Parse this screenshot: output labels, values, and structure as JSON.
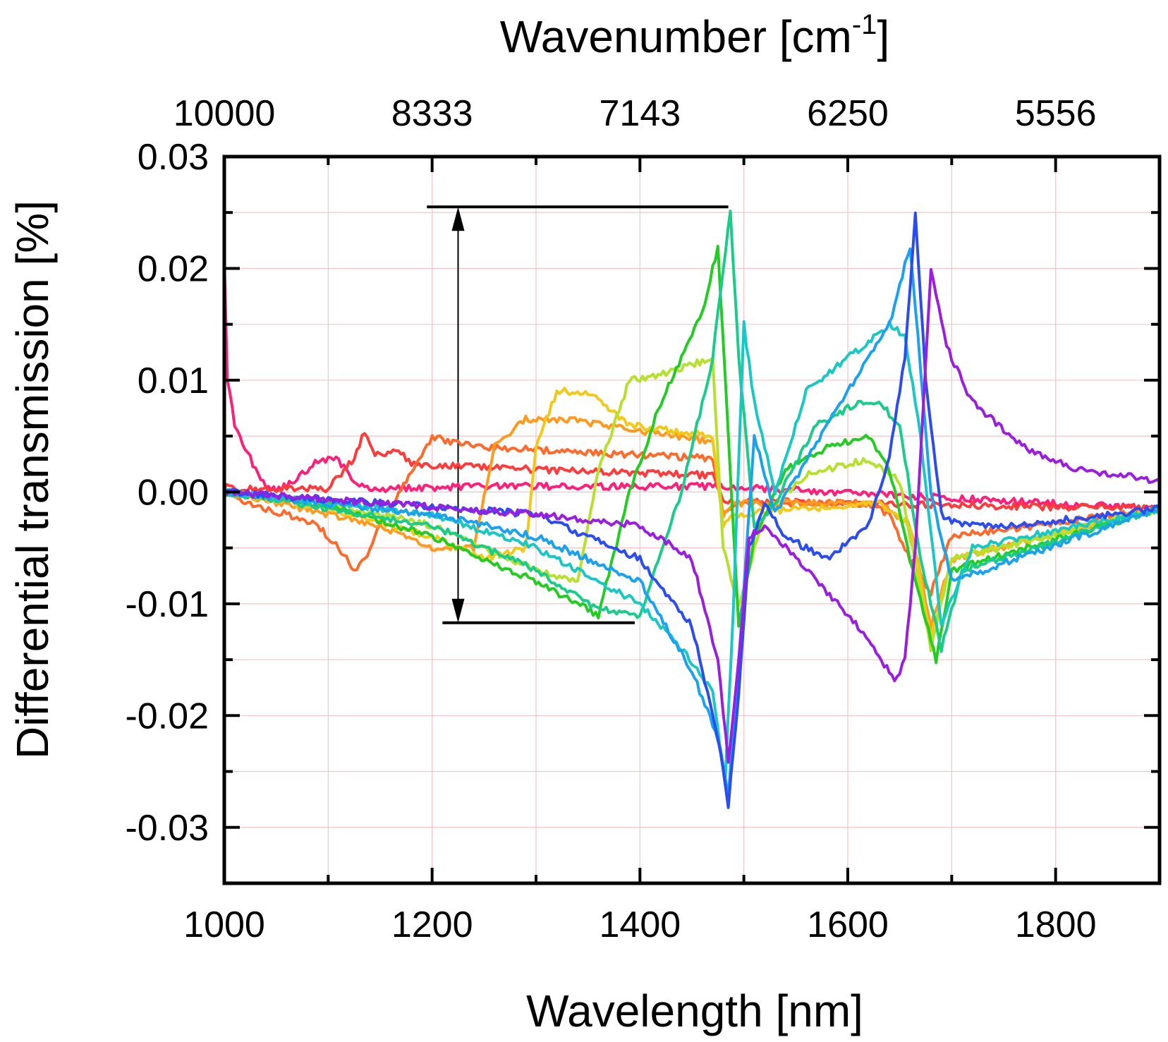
{
  "chart_data": {
    "type": "line",
    "title": "",
    "xlabel": "Wavelength [nm]",
    "x2label_base": "Wavenumber [cm",
    "x2label_sup": "-1",
    "x2label_end": "]",
    "ylabel": "Differential transmission [%]",
    "xlim": [
      1000,
      1900
    ],
    "ylim": [
      -0.035,
      0.03
    ],
    "x_ticks": [
      1000,
      1200,
      1400,
      1600,
      1800
    ],
    "x_tick_labels": [
      "1000",
      "1200",
      "1400",
      "1600",
      "1800"
    ],
    "x2_ticks": [
      1000,
      1200,
      1400,
      1600,
      1800
    ],
    "x2_tick_labels": [
      "10000",
      "8333",
      "7143",
      "6250",
      "5556"
    ],
    "y_ticks": [
      0.03,
      0.02,
      0.01,
      0.0,
      -0.01,
      -0.02,
      -0.03
    ],
    "y_tick_labels": [
      "0.03",
      "0.02",
      "0.01",
      "0.00",
      "-0.01",
      "-0.02",
      "-0.03"
    ],
    "grid": true,
    "colors": {
      "axis": "#000000",
      "grid": "#f4c4c4",
      "annotation": "#000000"
    },
    "annotation": {
      "top_line": {
        "x": [
          1195,
          1485
        ],
        "y": 0.0255
      },
      "bottom_line": {
        "x": [
          1210,
          1395
        ],
        "y": -0.0117
      },
      "arrow": {
        "x": 1225,
        "y": [
          0.0255,
          -0.0117
        ]
      }
    },
    "series": [
      {
        "name": "s1",
        "color": "#ff1f7a",
        "x": [
          1000,
          1003,
          1010,
          1020,
          1030,
          1040,
          1050,
          1060,
          1080,
          1090,
          1100,
          1110,
          1130,
          1150,
          1250,
          1480,
          1900
        ],
        "y": [
          0.021,
          0.01,
          0.006,
          0.004,
          0.002,
          0.0005,
          0.0003,
          0.0005,
          0.002,
          0.0028,
          0.003,
          0.0028,
          0.0005,
          0.0003,
          0.0005,
          0.0005,
          -0.0015
        ]
      },
      {
        "name": "s2",
        "color": "#ff3a3a",
        "x": [
          1000,
          1010,
          1100,
          1125,
          1135,
          1145,
          1170,
          1180,
          1300,
          1470,
          1480,
          1900
        ],
        "y": [
          0.0005,
          0.0003,
          0.0003,
          0.003,
          0.0055,
          0.0035,
          0.0035,
          0.0025,
          0.002,
          0.0015,
          -0.0008,
          -0.0015
        ]
      },
      {
        "name": "s3",
        "color": "#ff6a2a",
        "x": [
          1000,
          1020,
          1060,
          1090,
          1110,
          1125,
          1135,
          1150,
          1200,
          1215,
          1250,
          1470,
          1480,
          1490,
          1620,
          1640,
          1660,
          1680,
          1700,
          1900
        ],
        "y": [
          0.0,
          -0.001,
          -0.002,
          -0.003,
          -0.005,
          -0.007,
          -0.006,
          -0.003,
          0.005,
          0.0045,
          0.004,
          0.003,
          -0.002,
          -0.001,
          -0.001,
          -0.002,
          -0.006,
          -0.009,
          -0.004,
          -0.0015
        ]
      },
      {
        "name": "s4",
        "color": "#ff9a1f",
        "x": [
          1000,
          1050,
          1100,
          1150,
          1200,
          1240,
          1260,
          1290,
          1330,
          1470,
          1480,
          1490,
          1630,
          1660,
          1680,
          1700,
          1900
        ],
        "y": [
          0.0,
          -0.001,
          -0.002,
          -0.003,
          -0.005,
          -0.005,
          0.004,
          0.0065,
          0.0065,
          0.0045,
          -0.002,
          -0.001,
          -0.001,
          -0.003,
          -0.012,
          -0.006,
          -0.0015
        ]
      },
      {
        "name": "s5",
        "color": "#f2c81a",
        "x": [
          1000,
          1100,
          1200,
          1250,
          1290,
          1300,
          1320,
          1350,
          1390,
          1470,
          1480,
          1490,
          1630,
          1660,
          1680,
          1700,
          1900
        ],
        "y": [
          0.0,
          -0.0015,
          -0.004,
          -0.006,
          -0.005,
          0.004,
          0.009,
          0.009,
          0.006,
          0.005,
          -0.003,
          -0.002,
          -0.001,
          -0.003,
          -0.013,
          -0.006,
          -0.0015
        ]
      },
      {
        "name": "s6",
        "color": "#b6e02e",
        "x": [
          1000,
          1100,
          1200,
          1300,
          1340,
          1360,
          1390,
          1420,
          1470,
          1480,
          1495,
          1520,
          1560,
          1620,
          1650,
          1680,
          1700,
          1900
        ],
        "y": [
          0.0,
          -0.001,
          -0.003,
          -0.007,
          -0.008,
          0.002,
          0.01,
          0.0105,
          0.012,
          -0.005,
          -0.01,
          -0.002,
          0.0015,
          0.003,
          0.001,
          -0.014,
          -0.006,
          -0.0015
        ]
      },
      {
        "name": "s7",
        "color": "#22cc22",
        "x": [
          1000,
          1100,
          1200,
          1300,
          1360,
          1390,
          1420,
          1460,
          1475,
          1485,
          1495,
          1510,
          1540,
          1580,
          1620,
          1640,
          1660,
          1685,
          1700,
          1900
        ],
        "y": [
          0.0,
          -0.0012,
          -0.004,
          -0.008,
          -0.011,
          0.0,
          0.008,
          0.016,
          0.022,
          0.005,
          -0.012,
          -0.004,
          0.002,
          0.004,
          0.005,
          0.002,
          -0.006,
          -0.015,
          -0.007,
          -0.0015
        ]
      },
      {
        "name": "s8",
        "color": "#1acc8a",
        "x": [
          1000,
          1200,
          1300,
          1360,
          1400,
          1440,
          1470,
          1480,
          1487,
          1495,
          1510,
          1530,
          1570,
          1610,
          1630,
          1650,
          1670,
          1690,
          1710,
          1900
        ],
        "y": [
          0.0,
          -0.003,
          -0.007,
          -0.0105,
          -0.011,
          0.0,
          0.012,
          0.02,
          0.025,
          0.012,
          -0.003,
          -0.001,
          0.006,
          0.008,
          0.008,
          0.006,
          -0.006,
          -0.014,
          -0.007,
          -0.0015
        ]
      },
      {
        "name": "s9",
        "color": "#19c8c4",
        "x": [
          1000,
          1200,
          1300,
          1400,
          1440,
          1470,
          1482,
          1490,
          1500,
          1510,
          1530,
          1560,
          1600,
          1640,
          1655,
          1670,
          1690,
          1720,
          1900
        ],
        "y": [
          0.0,
          -0.002,
          -0.005,
          -0.01,
          -0.014,
          -0.018,
          -0.026,
          -0.01,
          0.015,
          0.008,
          0.0,
          0.009,
          0.012,
          0.015,
          0.014,
          0.005,
          -0.012,
          -0.005,
          -0.0015
        ]
      },
      {
        "name": "s10",
        "color": "#1aa2f0",
        "x": [
          1000,
          1200,
          1300,
          1400,
          1450,
          1475,
          1485,
          1495,
          1510,
          1530,
          1580,
          1620,
          1640,
          1660,
          1680,
          1700,
          1900
        ],
        "y": [
          0.0,
          -0.002,
          -0.004,
          -0.008,
          -0.016,
          -0.022,
          -0.027,
          -0.015,
          0.005,
          -0.002,
          0.006,
          0.012,
          0.015,
          0.022,
          0.0,
          -0.008,
          -0.0015
        ]
      },
      {
        "name": "s11",
        "color": "#2a4cf0",
        "x": [
          1000,
          1300,
          1400,
          1450,
          1475,
          1485,
          1495,
          1505,
          1520,
          1540,
          1580,
          1620,
          1640,
          1655,
          1665,
          1675,
          1690,
          1710,
          1760,
          1900
        ],
        "y": [
          0.0,
          -0.002,
          -0.006,
          -0.012,
          -0.022,
          -0.028,
          -0.018,
          -0.005,
          -0.001,
          -0.004,
          -0.006,
          -0.003,
          0.003,
          0.012,
          0.025,
          0.01,
          -0.002,
          -0.003,
          -0.003,
          -0.0015
        ]
      },
      {
        "name": "s12",
        "color": "#9a1ee0",
        "x": [
          1000,
          1300,
          1400,
          1450,
          1475,
          1485,
          1495,
          1505,
          1520,
          1540,
          1580,
          1620,
          1645,
          1655,
          1665,
          1680,
          1695,
          1720,
          1770,
          1820,
          1900
        ],
        "y": [
          0.0,
          -0.002,
          -0.003,
          -0.006,
          -0.015,
          -0.024,
          -0.015,
          -0.004,
          -0.003,
          -0.005,
          -0.009,
          -0.013,
          -0.017,
          -0.015,
          -0.005,
          0.02,
          0.013,
          0.008,
          0.004,
          0.002,
          0.001
        ]
      }
    ]
  }
}
